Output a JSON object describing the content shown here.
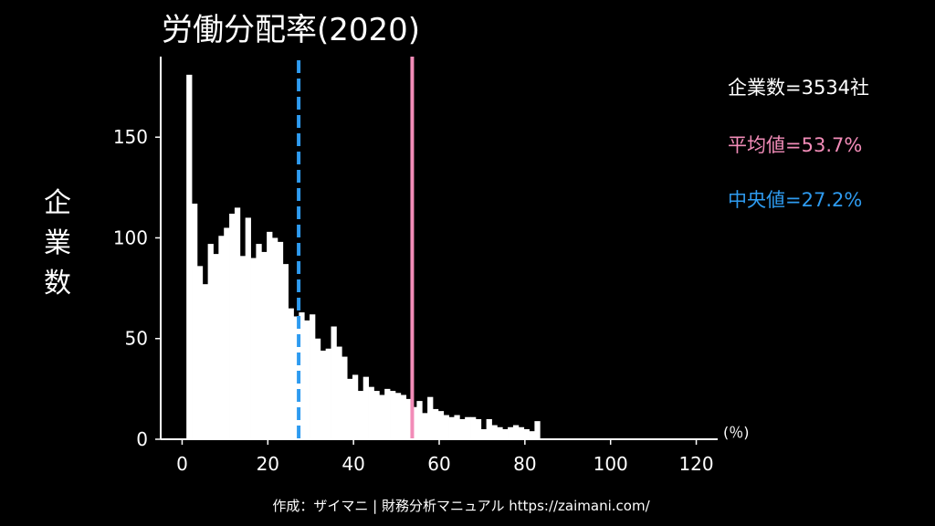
{
  "chart_data": {
    "type": "bar",
    "title": "労働分配率(2020)",
    "ylabel": "企業数",
    "xunit": "(％)",
    "xlim": [
      -5,
      125
    ],
    "ylim": [
      0,
      190
    ],
    "xticks": [
      0,
      20,
      40,
      60,
      80,
      100,
      120
    ],
    "yticks": [
      0,
      50,
      100,
      150
    ],
    "bin_start": 1,
    "bin_width": 1.25,
    "values": [
      181,
      117,
      86,
      77,
      97,
      92,
      101,
      105,
      112,
      115,
      91,
      110,
      90,
      97,
      93,
      103,
      100,
      98,
      87,
      65,
      61,
      63,
      59,
      62,
      50,
      44,
      45,
      56,
      46,
      41,
      30,
      32,
      24,
      31,
      26,
      24,
      22,
      25,
      24,
      23,
      22,
      20,
      16,
      19,
      13,
      21,
      15,
      14,
      12,
      11,
      12,
      10,
      11,
      11,
      10,
      5,
      10,
      7,
      6,
      5,
      6,
      7,
      6,
      5,
      4,
      9
    ],
    "median": 27.2,
    "mean": 53.7,
    "colors": {
      "bars": "#ffffff",
      "median": "#2e9bf0",
      "mean": "#f28cb8",
      "axes": "#ffffff"
    }
  },
  "stats": {
    "count": "企業数=3534社",
    "mean": "平均値=53.7%",
    "median": "中央値=27.2%"
  },
  "footer": "作成：ザイマニ | 財務分析マニュアル https://zaimani.com/"
}
